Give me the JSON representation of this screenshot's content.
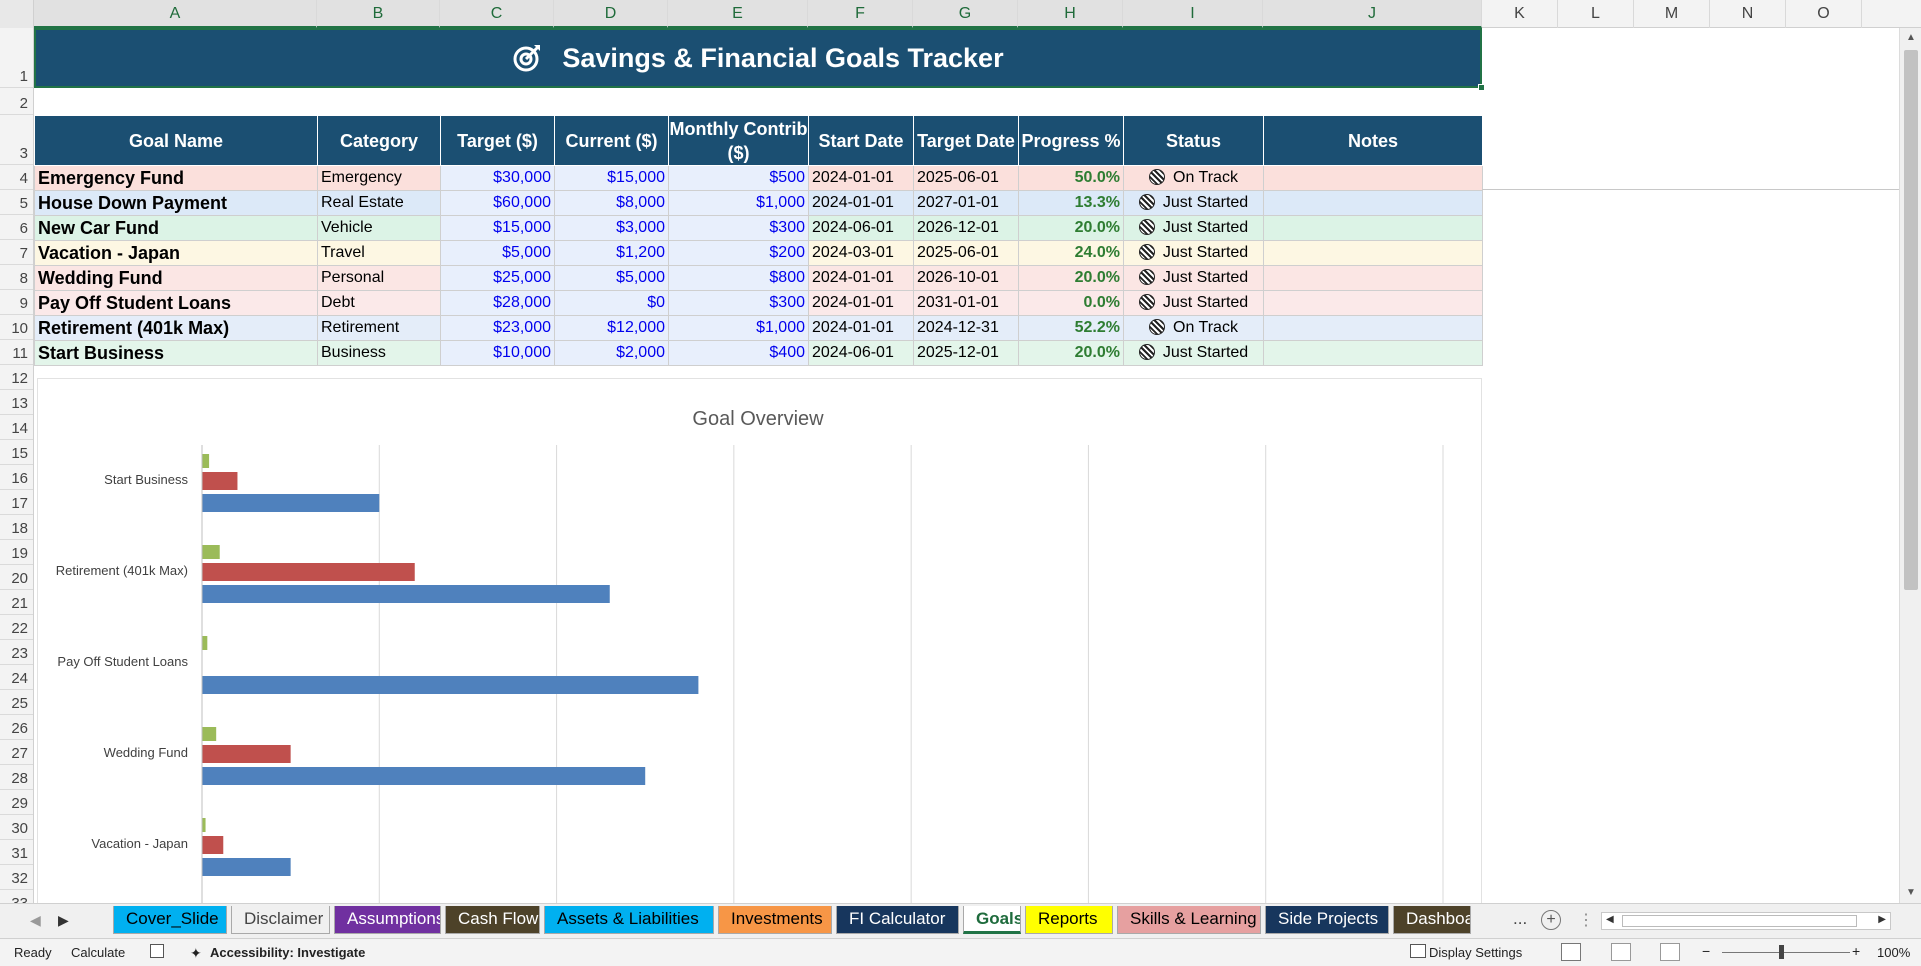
{
  "columns": [
    "A",
    "B",
    "C",
    "D",
    "E",
    "F",
    "G",
    "H",
    "I",
    "J",
    "K",
    "L",
    "M",
    "N",
    "O"
  ],
  "rows": [
    "1",
    "2",
    "3",
    "4",
    "5",
    "6",
    "7",
    "8",
    "9",
    "10",
    "11",
    "12",
    "13",
    "14",
    "15",
    "16",
    "17",
    "18",
    "19",
    "20",
    "21",
    "22",
    "23",
    "24",
    "25",
    "26",
    "27",
    "28",
    "29",
    "30",
    "31",
    "32",
    "33"
  ],
  "title": "Savings & Financial Goals Tracker",
  "headers": {
    "goal_name": "Goal Name",
    "category": "Category",
    "target": "Target ($)",
    "current": "Current ($)",
    "monthly": "Monthly Contrib ($)",
    "start_date": "Start Date",
    "target_date": "Target Date",
    "progress": "Progress %",
    "status": "Status",
    "notes": "Notes"
  },
  "goals": [
    {
      "name": "Emergency Fund",
      "category": "Emergency",
      "target": "$30,000",
      "current": "$15,000",
      "monthly": "$500",
      "start": "2024-01-01",
      "end": "2025-06-01",
      "progress": "50.0%",
      "status": "On Track",
      "notes": "",
      "color": "#fbe0dc"
    },
    {
      "name": "House Down Payment",
      "category": "Real Estate",
      "target": "$60,000",
      "current": "$8,000",
      "monthly": "$1,000",
      "start": "2024-01-01",
      "end": "2027-01-01",
      "progress": "13.3%",
      "status": "Just Started",
      "notes": "",
      "color": "#dce9f8"
    },
    {
      "name": "New Car Fund",
      "category": "Vehicle",
      "target": "$15,000",
      "current": "$3,000",
      "monthly": "$300",
      "start": "2024-06-01",
      "end": "2026-12-01",
      "progress": "20.0%",
      "status": "Just Started",
      "notes": "",
      "color": "#dcf3e6"
    },
    {
      "name": "Vacation - Japan",
      "category": "Travel",
      "target": "$5,000",
      "current": "$1,200",
      "monthly": "$200",
      "start": "2024-03-01",
      "end": "2025-06-01",
      "progress": "24.0%",
      "status": "Just Started",
      "notes": "",
      "color": "#fdf7e3"
    },
    {
      "name": "Wedding Fund",
      "category": "Personal",
      "target": "$25,000",
      "current": "$5,000",
      "monthly": "$800",
      "start": "2024-01-01",
      "end": "2026-10-01",
      "progress": "20.0%",
      "status": "Just Started",
      "notes": "",
      "color": "#fbe6e4"
    },
    {
      "name": "Pay Off Student Loans",
      "category": "Debt",
      "target": "$28,000",
      "current": "$0",
      "monthly": "$300",
      "start": "2024-01-01",
      "end": "2031-01-01",
      "progress": "0.0%",
      "status": "Just Started",
      "notes": "",
      "color": "#fbe9e9"
    },
    {
      "name": "Retirement (401k Max)",
      "category": "Retirement",
      "target": "$23,000",
      "current": "$12,000",
      "monthly": "$1,000",
      "start": "2024-01-01",
      "end": "2024-12-31",
      "progress": "52.2%",
      "status": "On Track",
      "notes": "",
      "color": "#e4edf9"
    },
    {
      "name": "Start Business",
      "category": "Business",
      "target": "$10,000",
      "current": "$2,000",
      "monthly": "$400",
      "start": "2024-06-01",
      "end": "2025-12-01",
      "progress": "20.0%",
      "status": "Just Started",
      "notes": "",
      "color": "#e3f5ea"
    }
  ],
  "chart_data": {
    "type": "bar",
    "orientation": "horizontal",
    "title": "Goal Overview",
    "categories": [
      "Start Business",
      "Retirement (401k Max)",
      "Pay Off Student Loans",
      "Wedding Fund",
      "Vacation - Japan"
    ],
    "series": [
      {
        "values": [
          400,
          1000,
          300,
          800,
          200
        ],
        "color": "#9bbb59"
      },
      {
        "values": [
          2000,
          12000,
          0,
          5000,
          1200
        ],
        "color": "#c0504d"
      },
      {
        "values": [
          10000,
          23000,
          28000,
          25000,
          5000
        ],
        "color": "#4f81bd"
      }
    ],
    "xlim": [
      0,
      70000
    ],
    "grid": true,
    "legend": "none"
  },
  "tabs": [
    {
      "label": "Cover_Slide",
      "bg": "#00b0f0",
      "fg": "#000000"
    },
    {
      "label": "Disclaimer",
      "bg": "#f0f0f0",
      "fg": "#444444"
    },
    {
      "label": "Assumptions",
      "bg": "#7030a0",
      "fg": "#ffffff"
    },
    {
      "label": "Cash Flow",
      "bg": "#4d4229",
      "fg": "#ffffff"
    },
    {
      "label": "Assets & Liabilities",
      "bg": "#00b0f0",
      "fg": "#000000"
    },
    {
      "label": "Investments",
      "bg": "#f79646",
      "fg": "#000000"
    },
    {
      "label": "FI Calculator",
      "bg": "#17365d",
      "fg": "#ffffff"
    },
    {
      "label": "Goals",
      "bg": "#ffffff",
      "fg": "#1e6b3c"
    },
    {
      "label": "Reports",
      "bg": "#ffff00",
      "fg": "#000000"
    },
    {
      "label": "Skills & Learning",
      "bg": "#e6a0a0",
      "fg": "#000000"
    },
    {
      "label": "Side Projects",
      "bg": "#17365d",
      "fg": "#ffffff"
    },
    {
      "label": "Dashboa",
      "bg": "#4d4229",
      "fg": "#ffffff"
    }
  ],
  "tab_overflow": "...",
  "status": {
    "ready": "Ready",
    "calculate": "Calculate",
    "accessibility": "Accessibility: Investigate",
    "display_settings": "Display Settings",
    "zoom": "100%"
  }
}
